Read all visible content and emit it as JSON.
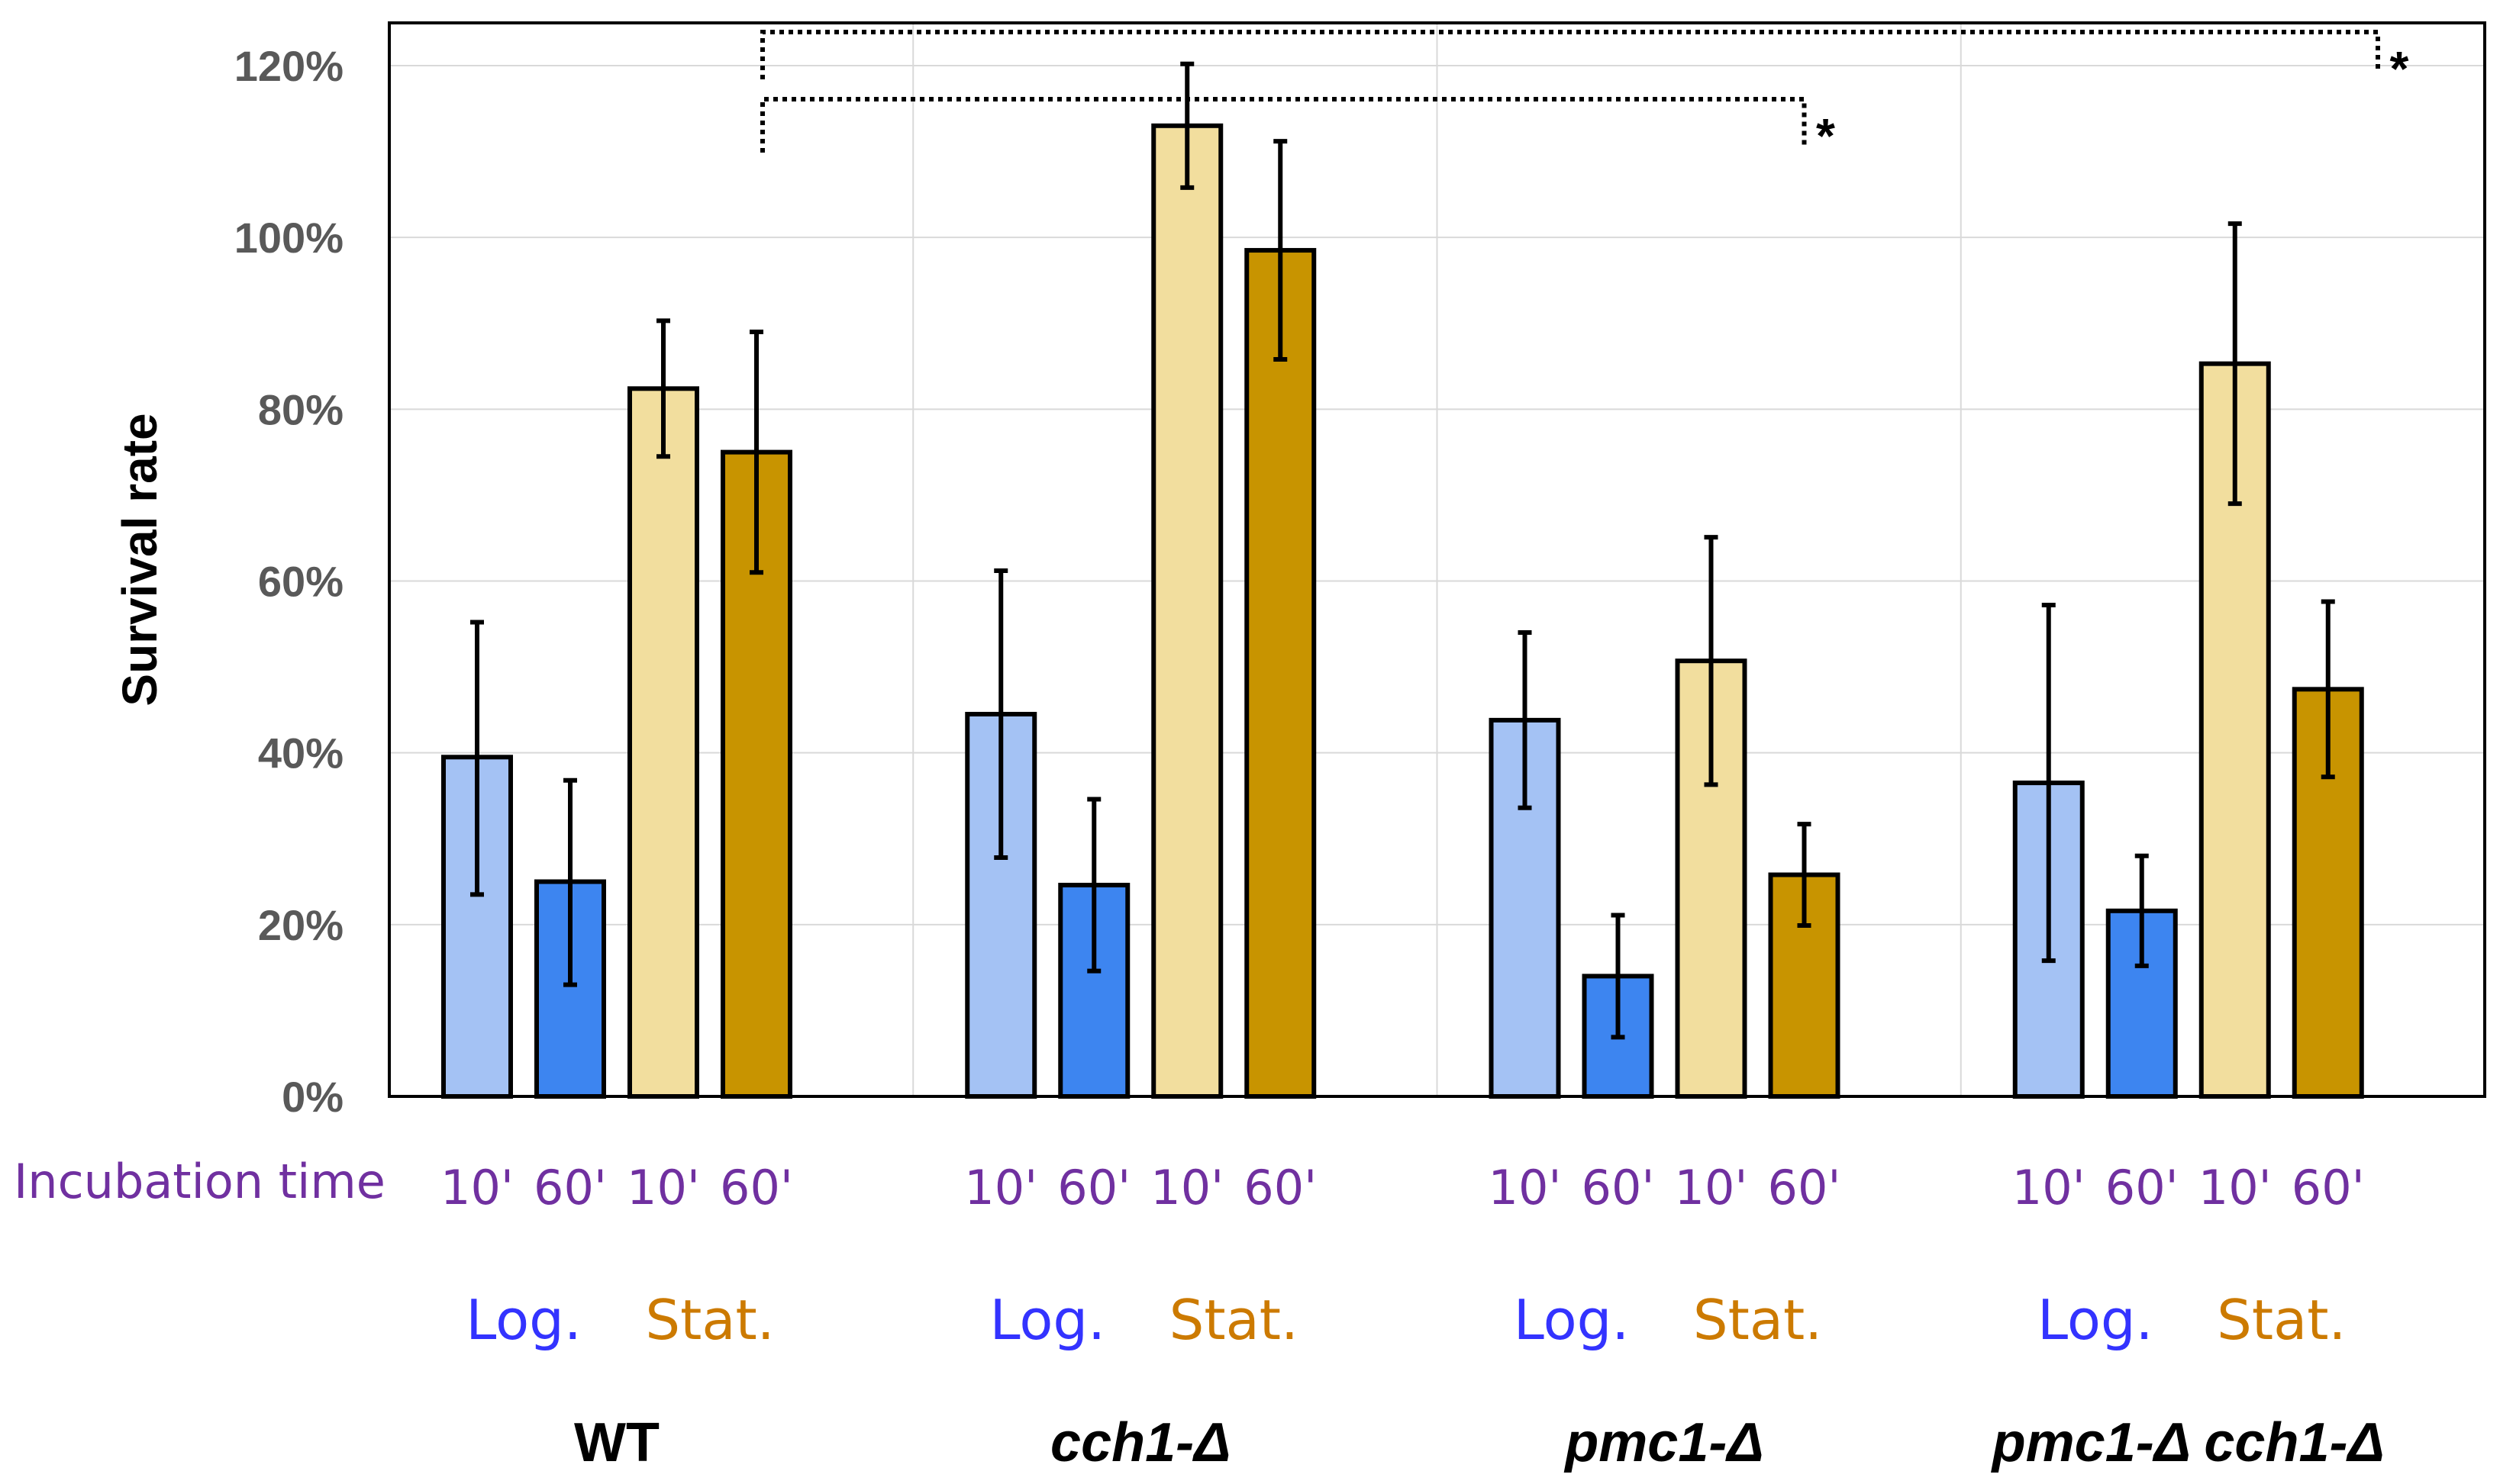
{
  "chart_data": {
    "type": "bar",
    "ylabel": "Survival rate",
    "ylim": [
      0,
      120
    ],
    "yticks": [
      "0%",
      "20%",
      "40%",
      "60%",
      "80%",
      "100%",
      "120%"
    ],
    "grid": true,
    "x_row_label": "Incubation time",
    "groups": [
      {
        "strain": "WT",
        "log_label": "Log.",
        "stat_label": "Stat.",
        "bars": [
          {
            "phase": "Log.",
            "time": "10'",
            "value": 39.5,
            "err_low": 23.5,
            "err_high": 55.2
          },
          {
            "phase": "Log.",
            "time": "60'",
            "value": 25.0,
            "err_low": 13.0,
            "err_high": 36.8
          },
          {
            "phase": "Stat.",
            "time": "10'",
            "value": 82.4,
            "err_low": 74.5,
            "err_high": 90.3
          },
          {
            "phase": "Stat.",
            "time": "60'",
            "value": 75.0,
            "err_low": 61.0,
            "err_high": 89.0
          }
        ]
      },
      {
        "strain": "cch1-Δ",
        "log_label": "Log.",
        "stat_label": "Stat.",
        "bars": [
          {
            "phase": "Log.",
            "time": "10'",
            "value": 44.5,
            "err_low": 27.8,
            "err_high": 61.2
          },
          {
            "phase": "Log.",
            "time": "60'",
            "value": 24.6,
            "err_low": 14.6,
            "err_high": 34.6
          },
          {
            "phase": "Stat.",
            "time": "10'",
            "value": 113.0,
            "err_low": 105.8,
            "err_high": 120.2
          },
          {
            "phase": "Stat.",
            "time": "60'",
            "value": 98.5,
            "err_low": 85.8,
            "err_high": 111.2
          }
        ]
      },
      {
        "strain": "pmc1-Δ",
        "log_label": "Log.",
        "stat_label": "Stat.",
        "bars": [
          {
            "phase": "Log.",
            "time": "10'",
            "value": 43.8,
            "err_low": 33.6,
            "err_high": 54.0
          },
          {
            "phase": "Log.",
            "time": "60'",
            "value": 14.0,
            "err_low": 6.9,
            "err_high": 21.1
          },
          {
            "phase": "Stat.",
            "time": "10'",
            "value": 50.7,
            "err_low": 36.3,
            "err_high": 65.1
          },
          {
            "phase": "Stat.",
            "time": "60'",
            "value": 25.8,
            "err_low": 19.9,
            "err_high": 31.7
          }
        ]
      },
      {
        "strain": "pmc1-Δ cch1-Δ",
        "log_label": "Log.",
        "stat_label": "Stat.",
        "bars": [
          {
            "phase": "Log.",
            "time": "10'",
            "value": 36.5,
            "err_low": 15.8,
            "err_high": 57.2
          },
          {
            "phase": "Log.",
            "time": "60'",
            "value": 21.6,
            "err_low": 15.2,
            "err_high": 28.0
          },
          {
            "phase": "Stat.",
            "time": "10'",
            "value": 85.3,
            "err_low": 69.0,
            "err_high": 101.6
          },
          {
            "phase": "Stat.",
            "time": "60'",
            "value": 47.4,
            "err_low": 37.2,
            "err_high": 57.6
          }
        ]
      }
    ],
    "significance": [
      {
        "from_group": 0,
        "to_group": 2,
        "marker": "*"
      },
      {
        "from_group": 0,
        "to_group": 3,
        "marker": "*"
      }
    ]
  },
  "colors": {
    "log_10": "#a4c2f4",
    "log_60": "#3d85f0",
    "stat_10": "#f2de9e",
    "stat_60": "#c89400",
    "log_text": "#3333ff",
    "stat_text": "#cc7a00",
    "incubation_text": "#7030a0",
    "grid": "#d9d9d9"
  }
}
